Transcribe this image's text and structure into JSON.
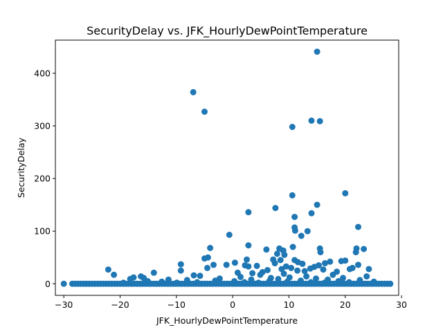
{
  "chart_data": {
    "type": "scatter",
    "title": "SecurityDelay vs. JFK_HourlyDewPointTemperature",
    "xlabel": "JFK_HourlyDewPointTemperature",
    "ylabel": "SecurityDelay",
    "xlim": [
      -31.5,
      29.5
    ],
    "ylim": [
      -22,
      463
    ],
    "xticks": [
      -30,
      -20,
      -10,
      0,
      10,
      20,
      30
    ],
    "yticks": [
      0,
      100,
      200,
      300,
      400
    ],
    "grid": false,
    "marker_color": "#1f77b4",
    "zero_band": {
      "x_values": [
        -30,
        -28.5,
        -28,
        -27.5,
        -27,
        -26.5,
        -26,
        -25.5,
        -25,
        -24.5,
        -24,
        -23.5,
        -23,
        -22.5,
        -22,
        -21.5,
        -21,
        -20.5,
        -20,
        -19.5,
        -19,
        -18.5,
        -18,
        -17.5,
        -17,
        -16.5,
        -16,
        -15.5,
        -15,
        -14.5,
        -14,
        -13.5,
        -13,
        -12.5,
        -12,
        -11.5,
        -11,
        -10.5,
        -10,
        -9.5,
        -9,
        -8.5,
        -8,
        -7.5,
        -7,
        -6.5,
        -6,
        -5.5,
        -5,
        -4.5,
        -4,
        -3.5,
        -3,
        -2.5,
        -2,
        -1.5,
        -1,
        -0.5,
        0,
        0.5,
        1,
        1.5,
        2,
        2.5,
        3,
        3.5,
        4,
        4.5,
        5,
        5.5,
        6,
        6.5,
        7,
        7.5,
        8,
        8.5,
        9,
        9.5,
        10,
        10.5,
        11,
        11.5,
        12,
        12.5,
        13,
        13.5,
        14,
        14.5,
        15,
        15.5,
        16,
        16.5,
        17,
        17.5,
        18,
        18.5,
        19,
        19.5,
        20,
        20.5,
        21,
        21.5,
        22,
        22.5,
        23,
        23.5,
        24,
        24.5,
        25,
        25.5,
        26,
        26.5,
        27,
        27.5,
        28
      ],
      "y": 0
    },
    "points": [
      {
        "x": 15,
        "y": 441
      },
      {
        "x": -7,
        "y": 364
      },
      {
        "x": -5,
        "y": 327
      },
      {
        "x": 14,
        "y": 310
      },
      {
        "x": 15.5,
        "y": 309
      },
      {
        "x": 10.6,
        "y": 298
      },
      {
        "x": 20,
        "y": 172
      },
      {
        "x": 10.6,
        "y": 168
      },
      {
        "x": 15,
        "y": 150
      },
      {
        "x": 7.6,
        "y": 144
      },
      {
        "x": 2.8,
        "y": 136
      },
      {
        "x": 14,
        "y": 134
      },
      {
        "x": 11,
        "y": 127
      },
      {
        "x": 22.3,
        "y": 108
      },
      {
        "x": 11,
        "y": 107
      },
      {
        "x": 11.1,
        "y": 101
      },
      {
        "x": 13.3,
        "y": 100
      },
      {
        "x": -0.6,
        "y": 93
      },
      {
        "x": 12.2,
        "y": 91
      },
      {
        "x": 2.8,
        "y": 73
      },
      {
        "x": 10.7,
        "y": 70
      },
      {
        "x": -4,
        "y": 68
      },
      {
        "x": 15.5,
        "y": 67
      },
      {
        "x": 8.3,
        "y": 67
      },
      {
        "x": 22,
        "y": 67
      },
      {
        "x": 23.3,
        "y": 66
      },
      {
        "x": 6,
        "y": 65
      },
      {
        "x": 9,
        "y": 63
      },
      {
        "x": 15.6,
        "y": 60
      },
      {
        "x": 21.9,
        "y": 60
      },
      {
        "x": 7.9,
        "y": 57
      },
      {
        "x": 9.2,
        "y": 55
      },
      {
        "x": -4.4,
        "y": 50
      },
      {
        "x": -5,
        "y": 48
      },
      {
        "x": 2.5,
        "y": 46
      },
      {
        "x": 7.2,
        "y": 46
      },
      {
        "x": 11,
        "y": 45
      },
      {
        "x": 8.5,
        "y": 45
      },
      {
        "x": 20,
        "y": 44
      },
      {
        "x": 19.3,
        "y": 43
      },
      {
        "x": 17.3,
        "y": 42
      },
      {
        "x": 11.6,
        "y": 41
      },
      {
        "x": 0.4,
        "y": 40
      },
      {
        "x": 16.4,
        "y": 39
      },
      {
        "x": 7.5,
        "y": 39
      },
      {
        "x": 12.4,
        "y": 38
      },
      {
        "x": -9.2,
        "y": 37
      },
      {
        "x": -3.4,
        "y": 36
      },
      {
        "x": -1.1,
        "y": 36
      },
      {
        "x": 22.3,
        "y": 36
      },
      {
        "x": 2.2,
        "y": 35
      },
      {
        "x": 15.3,
        "y": 35
      },
      {
        "x": 4.3,
        "y": 34
      },
      {
        "x": 2.8,
        "y": 33
      },
      {
        "x": 9.5,
        "y": 33
      },
      {
        "x": 14.5,
        "y": 32
      },
      {
        "x": -4.5,
        "y": 30
      },
      {
        "x": 10.4,
        "y": 30
      },
      {
        "x": 21.3,
        "y": 30
      },
      {
        "x": 13.8,
        "y": 29
      },
      {
        "x": 8.7,
        "y": 28
      },
      {
        "x": 20.8,
        "y": 28
      },
      {
        "x": 24.2,
        "y": 28
      },
      {
        "x": 16.1,
        "y": 27
      },
      {
        "x": -22.1,
        "y": 27
      },
      {
        "x": 6.2,
        "y": 26
      },
      {
        "x": -9.2,
        "y": 25
      },
      {
        "x": 11.5,
        "y": 25
      },
      {
        "x": 12.8,
        "y": 24
      },
      {
        "x": 18.5,
        "y": 23
      },
      {
        "x": 5.3,
        "y": 22
      },
      {
        "x": -14,
        "y": 21
      },
      {
        "x": 0.9,
        "y": 21
      },
      {
        "x": 3.5,
        "y": 20
      },
      {
        "x": 9.1,
        "y": 19
      },
      {
        "x": -21.1,
        "y": 17
      },
      {
        "x": 17.8,
        "y": 17
      },
      {
        "x": 4.9,
        "y": 17
      },
      {
        "x": -6.9,
        "y": 16
      },
      {
        "x": -5.8,
        "y": 15
      },
      {
        "x": 13.1,
        "y": 14
      },
      {
        "x": 23.8,
        "y": 14
      },
      {
        "x": -16.3,
        "y": 14
      },
      {
        "x": 1.4,
        "y": 13
      },
      {
        "x": 10.1,
        "y": 12
      },
      {
        "x": -17.6,
        "y": 12
      },
      {
        "x": -15.8,
        "y": 11
      },
      {
        "x": 6.8,
        "y": 11
      },
      {
        "x": 19.6,
        "y": 11
      },
      {
        "x": -2.3,
        "y": 10
      },
      {
        "x": 14.8,
        "y": 10
      },
      {
        "x": -18.2,
        "y": 9
      },
      {
        "x": 8.1,
        "y": 9
      },
      {
        "x": -11.4,
        "y": 8
      },
      {
        "x": 3.3,
        "y": 8
      },
      {
        "x": 16.9,
        "y": 8
      },
      {
        "x": 22.6,
        "y": 7
      },
      {
        "x": -8.1,
        "y": 7
      },
      {
        "x": 12.1,
        "y": 6
      },
      {
        "x": -3.1,
        "y": 6
      },
      {
        "x": 0.3,
        "y": 5
      },
      {
        "x": 18.8,
        "y": 5
      },
      {
        "x": 6.5,
        "y": 5
      },
      {
        "x": -15.1,
        "y": 5
      },
      {
        "x": 25.1,
        "y": 4
      },
      {
        "x": -12.6,
        "y": 4
      },
      {
        "x": 9.7,
        "y": 4
      },
      {
        "x": 2.1,
        "y": 3
      },
      {
        "x": -6.3,
        "y": 3
      },
      {
        "x": 13.9,
        "y": 3
      },
      {
        "x": 20.7,
        "y": 3
      },
      {
        "x": -19.4,
        "y": 2
      },
      {
        "x": 4.6,
        "y": 2
      },
      {
        "x": -9.9,
        "y": 2
      },
      {
        "x": 16.3,
        "y": 2
      }
    ]
  }
}
